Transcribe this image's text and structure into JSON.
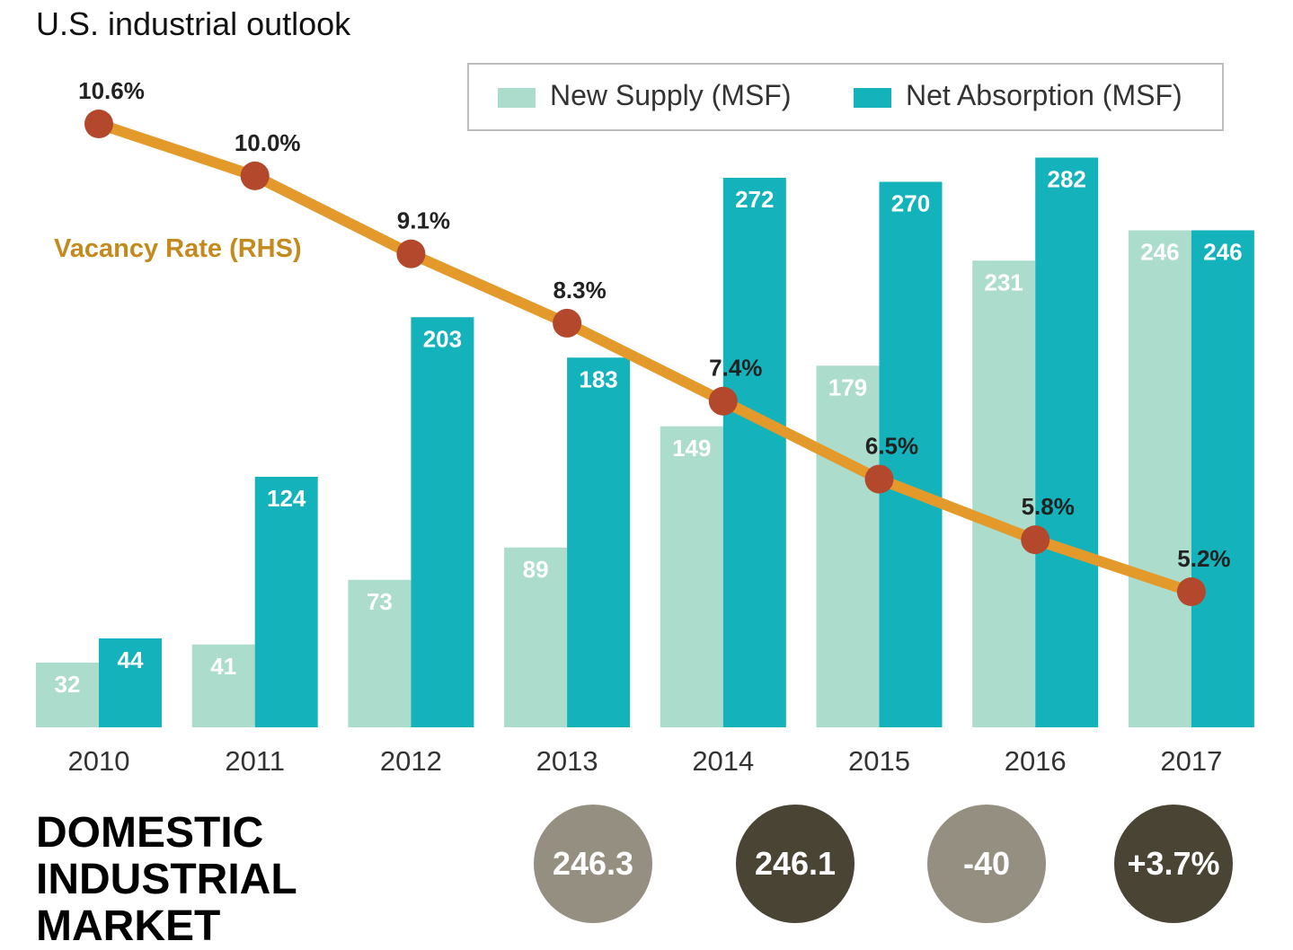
{
  "page": {
    "title": "U.S. industrial outlook"
  },
  "colors": {
    "new_supply": "#acdccc",
    "net_absorption": "#14b2bb",
    "vacancy_line": "#e49a2b",
    "vacancy_marker": "#b3482c",
    "vacancy_label": "#c48a1e",
    "circle_light": "#958f81",
    "circle_dark": "#4a4435"
  },
  "chart_data": {
    "type": "bar",
    "categories": [
      "2010",
      "2011",
      "2012",
      "2013",
      "2014",
      "2015",
      "2016",
      "2017"
    ],
    "series": [
      {
        "name": "New Supply (MSF)",
        "type": "bar",
        "values": [
          32,
          41,
          73,
          89,
          149,
          179,
          231,
          246
        ]
      },
      {
        "name": "Net Absorption (MSF)",
        "type": "bar",
        "values": [
          44,
          124,
          203,
          183,
          272,
          270,
          282,
          246
        ]
      },
      {
        "name": "Vacancy Rate (RHS)",
        "type": "line",
        "axis": "right",
        "values": [
          10.6,
          10.0,
          9.1,
          8.3,
          7.4,
          6.5,
          5.8,
          5.2
        ],
        "labels": [
          "10.6%",
          "10.0%",
          "9.1%",
          "8.3%",
          "7.4%",
          "6.5%",
          "5.8%",
          "5.2%"
        ]
      }
    ],
    "legend_position": "top-right",
    "grid": false
  },
  "footer": {
    "market_title_lines": [
      "DOMESTIC",
      "INDUSTRIAL",
      "MARKET"
    ],
    "stats": [
      {
        "value": "246.3",
        "tone": "light"
      },
      {
        "value": "246.1",
        "tone": "dark"
      },
      {
        "value": "-40",
        "tone": "light"
      },
      {
        "value": "+3.7%",
        "tone": "dark"
      }
    ]
  }
}
